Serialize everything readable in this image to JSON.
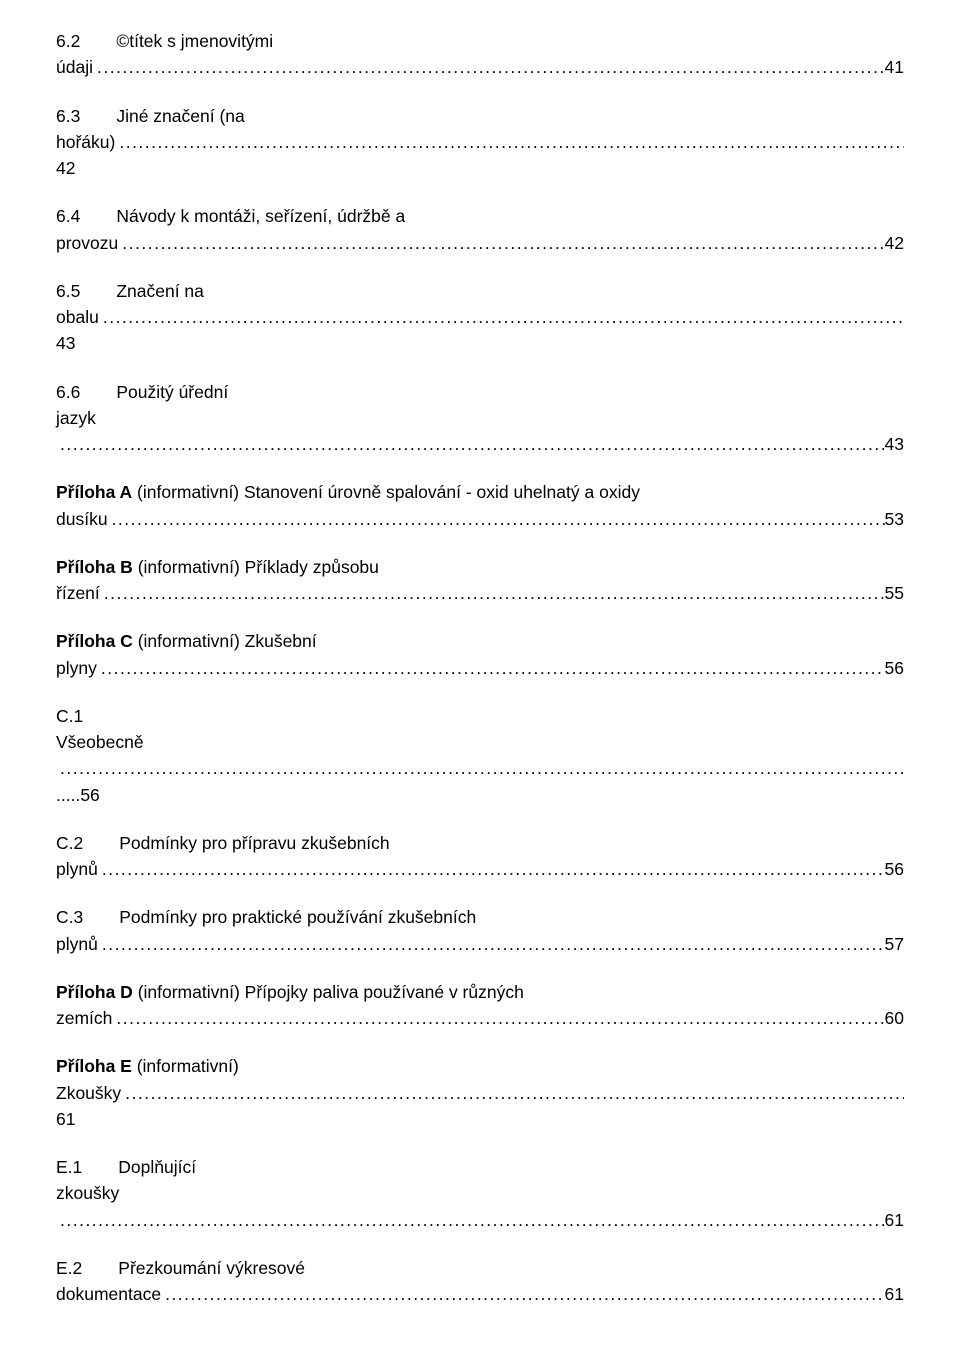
{
  "entries": [
    {
      "num": "6.2",
      "label_line1": "©títek s jmenovitými",
      "wrap": "údaji",
      "page": "41",
      "bold": false,
      "num_before_label": true
    },
    {
      "num": "6.3",
      "label_line1": "Jiné značení (na",
      "wrap": "hořáku)",
      "page": "42",
      "bold": false,
      "num_before_label": true,
      "page_under_wrap": true
    },
    {
      "num": "6.4",
      "label_line1": "Návody k montáži, seřízení, údržbě a",
      "wrap": "provozu",
      "page": "42",
      "bold": false,
      "num_before_label": true
    },
    {
      "num": "6.5",
      "label_line1": "Značení na",
      "wrap": "obalu",
      "page": "43",
      "bold": false,
      "num_before_label": true,
      "page_under_wrap": true,
      "wrap_first": true
    },
    {
      "num": "6.6",
      "label_line1": "Použitý úřední",
      "wrap": "jazyk",
      "page": "43",
      "bold": false,
      "num_before_label": true,
      "page_after_dots_below": true
    },
    {
      "num": "",
      "label_line1": "Příloha A (informativní) Stanovení úrovně spalování - oxid uhelnatý a oxidy",
      "wrap": "dusíku",
      "page": "53",
      "bold": false,
      "bold_prefix": "Příloha A"
    },
    {
      "num": "",
      "label_line1": "Příloha B (informativní) Příklady způsobu",
      "wrap": "řízení",
      "page": "55",
      "bold": false,
      "bold_prefix": "Příloha B"
    },
    {
      "num": "",
      "label_line1": "Příloha C (informativní) Zkušební",
      "wrap": "plyny",
      "page": "56",
      "bold": false,
      "bold_prefix": "Příloha C"
    },
    {
      "num": "C.1",
      "label_line1": "",
      "wrap": "Všeobecně",
      "page": "56",
      "bold": false,
      "num_alone": true,
      "page_under_wrap": true,
      "extra_dots_line": true
    },
    {
      "num": "C.2",
      "label_line1": "Podmínky pro přípravu zkušebních",
      "wrap": "plynů",
      "page": "56",
      "bold": false,
      "num_before_label": true
    },
    {
      "num": "C.3",
      "label_line1": "Podmínky pro praktické používání zkušebních",
      "wrap": "plynů",
      "page": "57",
      "bold": false,
      "num_before_label": true
    },
    {
      "num": "",
      "label_line1": "Příloha D (informativní) Přípojky paliva používané v různých",
      "wrap": "zemích",
      "page": "60",
      "bold": false,
      "bold_prefix": "Příloha D"
    },
    {
      "num": "",
      "label_line1": "Příloha E (informativní)",
      "wrap": "Zkoušky",
      "page": "61",
      "bold": false,
      "bold_prefix": "Příloha E",
      "page_under_wrap": true
    },
    {
      "num": "E.1",
      "label_line1": "Doplňující",
      "wrap": "zkoušky",
      "page": "61",
      "bold": false,
      "num_before_label": true,
      "page_after_dots_below": true
    },
    {
      "num": "E.2",
      "label_line1": "Přezkoumání výkresové",
      "wrap": "dokumentace",
      "page": "61",
      "bold": false,
      "num_before_label": true
    }
  ],
  "dots": "................................................................................................................................................................................................................................................................................................................................................"
}
